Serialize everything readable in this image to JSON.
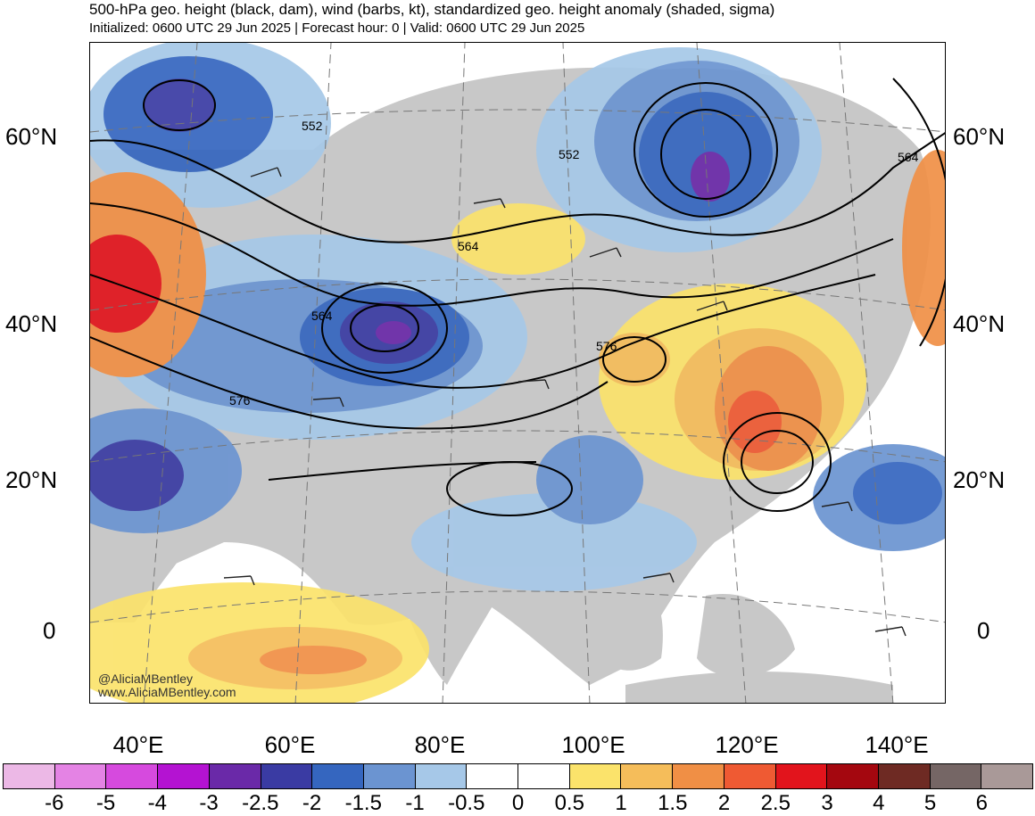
{
  "header": {
    "title": "500-hPa geo. height (black, dam), wind (barbs, kt), standardized geo. height anomaly (shaded, sigma)",
    "subtitle": "Initialized: 0600 UTC 29 Jun 2025 | Forecast hour: 0 | Valid: 0600 UTC 29 Jun 2025"
  },
  "axes": {
    "lat_left": [
      "60°N",
      "40°N",
      "20°N",
      "0"
    ],
    "lat_right": [
      "60°N",
      "40°N",
      "20°N",
      "0"
    ],
    "lon": [
      "40°E",
      "60°E",
      "80°E",
      "100°E",
      "120°E",
      "140°E"
    ]
  },
  "contours": {
    "labels": [
      "552",
      "552",
      "564",
      "564",
      "564",
      "576",
      "576"
    ]
  },
  "credit": {
    "handle": "@AliciaMBentley",
    "site": "www.AliciaMBentley.com"
  },
  "colorbar": {
    "colors": [
      "#ecb8e6",
      "#e483e4",
      "#d64ade",
      "#b413d2",
      "#6a29a8",
      "#3a3ba3",
      "#3566bf",
      "#6b94d1",
      "#a6c8e8",
      "#ffffff",
      "#ffffff",
      "#fbe36b",
      "#f5bd5a",
      "#f08f45",
      "#ef5a33",
      "#e2141c",
      "#a4070f",
      "#6e2a23",
      "#756665",
      "#a99998"
    ],
    "labels": [
      "-6",
      "-5",
      "-4",
      "-3",
      "-2.5",
      "-2",
      "-1.5",
      "-1",
      "-0.5",
      "0",
      "0.5",
      "1",
      "1.5",
      "2",
      "2.5",
      "3",
      "4",
      "5",
      "6"
    ]
  }
}
